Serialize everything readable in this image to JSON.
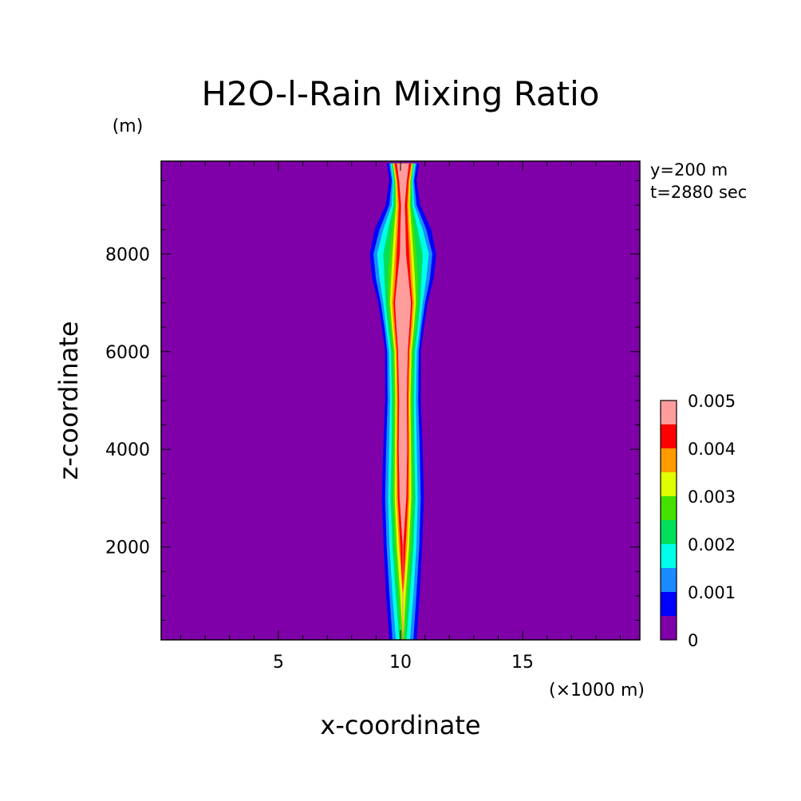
{
  "chart_data": {
    "type": "heatmap",
    "title": "H2O-l-Rain Mixing Ratio",
    "xlabel": "x-coordinate",
    "ylabel": "z-coordinate",
    "x_unit": "(×1000 m)",
    "y_unit": "(m)",
    "annotations": [
      "y=200 m",
      "t=2880 sec"
    ],
    "xlim": [
      0.2,
      19.8
    ],
    "ylim": [
      100,
      9900
    ],
    "x_ticks": [
      5,
      10,
      15
    ],
    "y_ticks": [
      2000,
      4000,
      6000,
      8000
    ],
    "grid": false,
    "legend_position": "right",
    "colorbar": {
      "levels": [
        0,
        0.0005,
        0.001,
        0.0015,
        0.002,
        0.0025,
        0.003,
        0.0035,
        0.004,
        0.0045,
        0.005
      ],
      "colors": [
        "#7f00a8",
        "#0000ff",
        "#1a8cff",
        "#00ffe8",
        "#00e05a",
        "#44e000",
        "#e0ff00",
        "#ff9a00",
        "#ff0000",
        "#ff9c9c"
      ],
      "tick_labels": [
        "0",
        "0.001",
        "0.002",
        "0.003",
        "0.004",
        "0.005"
      ],
      "max_color": "#ffffff"
    },
    "plume": {
      "center_x": 10.1,
      "description_level_order": [
        "0.0005",
        "0.001",
        "0.0015",
        "0.002",
        "0.0025",
        "0.003",
        "0.0035",
        "0.004",
        "0.005"
      ],
      "profiles": [
        {
          "z": 9850,
          "half_widths": [
            0.65,
            0.55,
            0.5,
            0.45,
            0.42,
            0.4,
            0.37,
            0.33,
            0.24
          ]
        },
        {
          "z": 9500,
          "half_widths": [
            0.55,
            0.45,
            0.4,
            0.36,
            0.33,
            0.3,
            0.27,
            0.22,
            0.15
          ]
        },
        {
          "z": 9000,
          "half_widths": [
            0.7,
            0.55,
            0.45,
            0.38,
            0.32,
            0.27,
            0.22,
            0.16,
            0.07
          ]
        },
        {
          "z": 8500,
          "half_widths": [
            1.15,
            0.95,
            0.8,
            0.6,
            0.45,
            0.35,
            0.27,
            0.2,
            0.1
          ]
        },
        {
          "z": 8000,
          "half_widths": [
            1.35,
            1.2,
            1.05,
            0.8,
            0.55,
            0.42,
            0.33,
            0.25,
            0.12
          ]
        },
        {
          "z": 7500,
          "half_widths": [
            1.25,
            1.1,
            0.95,
            0.75,
            0.6,
            0.48,
            0.38,
            0.3,
            0.22
          ]
        },
        {
          "z": 7000,
          "half_widths": [
            1.0,
            0.9,
            0.8,
            0.7,
            0.6,
            0.52,
            0.45,
            0.38,
            0.32
          ]
        },
        {
          "z": 6500,
          "half_widths": [
            0.85,
            0.75,
            0.68,
            0.6,
            0.5,
            0.44,
            0.38,
            0.32,
            0.26
          ]
        },
        {
          "z": 6000,
          "half_widths": [
            0.72,
            0.64,
            0.56,
            0.48,
            0.4,
            0.34,
            0.29,
            0.24,
            0.19
          ]
        },
        {
          "z": 5000,
          "half_widths": [
            0.72,
            0.62,
            0.52,
            0.44,
            0.36,
            0.3,
            0.25,
            0.2,
            0.15
          ]
        },
        {
          "z": 4000,
          "half_widths": [
            0.8,
            0.68,
            0.56,
            0.46,
            0.38,
            0.32,
            0.27,
            0.22,
            0.17
          ]
        },
        {
          "z": 3000,
          "half_widths": [
            0.85,
            0.72,
            0.6,
            0.5,
            0.4,
            0.33,
            0.26,
            0.2,
            0.13
          ]
        },
        {
          "z": 2000,
          "half_widths": [
            0.78,
            0.66,
            0.54,
            0.42,
            0.32,
            0.24,
            0.16,
            0.1,
            0.0
          ]
        },
        {
          "z": 1000,
          "half_widths": [
            0.68,
            0.54,
            0.42,
            0.28,
            0.18,
            0.1,
            0.0,
            0.0,
            0.0
          ]
        },
        {
          "z": 100,
          "half_widths": [
            0.55,
            0.42,
            0.28,
            0.14,
            0.06,
            0.0,
            0.0,
            0.0,
            0.0
          ]
        }
      ]
    }
  }
}
